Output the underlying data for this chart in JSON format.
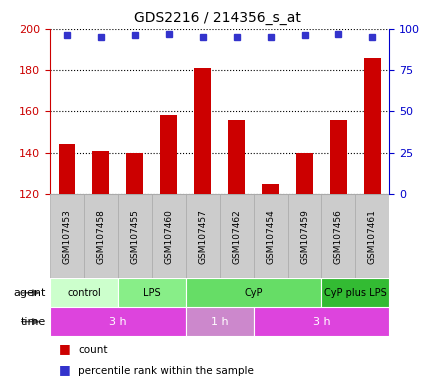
{
  "title": "GDS2216 / 214356_s_at",
  "samples": [
    "GSM107453",
    "GSM107458",
    "GSM107455",
    "GSM107460",
    "GSM107457",
    "GSM107462",
    "GSM107454",
    "GSM107459",
    "GSM107456",
    "GSM107461"
  ],
  "counts": [
    144,
    141,
    140,
    158,
    181,
    156,
    125,
    140,
    156,
    186
  ],
  "percentile_ranks": [
    96,
    95,
    96,
    97,
    95,
    95,
    95,
    96,
    97,
    95
  ],
  "ylim_left": [
    120,
    200
  ],
  "ylim_right": [
    0,
    100
  ],
  "yticks_left": [
    120,
    140,
    160,
    180,
    200
  ],
  "yticks_right": [
    0,
    25,
    50,
    75,
    100
  ],
  "bar_color": "#cc0000",
  "dot_color": "#3333cc",
  "agent_groups": [
    {
      "label": "control",
      "start": 0,
      "end": 2,
      "color": "#ccffcc"
    },
    {
      "label": "LPS",
      "start": 2,
      "end": 4,
      "color": "#88ee88"
    },
    {
      "label": "CyP",
      "start": 4,
      "end": 8,
      "color": "#66dd66"
    },
    {
      "label": "CyP plus LPS",
      "start": 8,
      "end": 10,
      "color": "#33bb33"
    }
  ],
  "time_groups": [
    {
      "label": "3 h",
      "start": 0,
      "end": 4,
      "color": "#dd44dd"
    },
    {
      "label": "1 h",
      "start": 4,
      "end": 6,
      "color": "#cc88cc"
    },
    {
      "label": "3 h",
      "start": 6,
      "end": 10,
      "color": "#dd44dd"
    }
  ],
  "left_axis_color": "#cc0000",
  "right_axis_color": "#0000cc",
  "sample_bg_color": "#cccccc",
  "sample_border_color": "#aaaaaa"
}
